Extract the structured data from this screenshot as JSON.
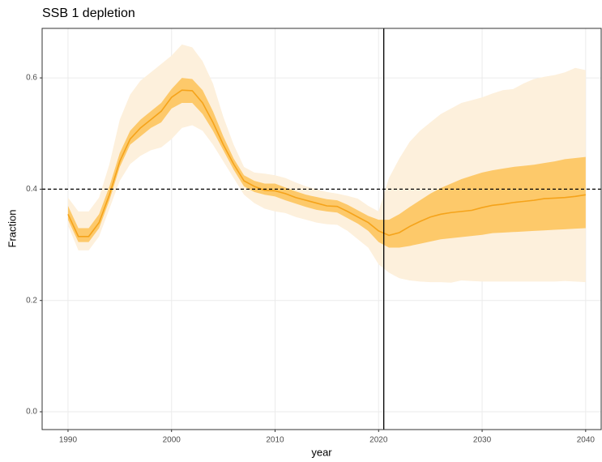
{
  "chart_data": {
    "type": "ribbon-line",
    "title": "SSB 1 depletion",
    "x_label": "year",
    "y_label": "Fraction",
    "x": [
      1990,
      1991,
      1992,
      1993,
      1994,
      1995,
      1996,
      1997,
      1998,
      1999,
      2000,
      2001,
      2002,
      2003,
      2004,
      2005,
      2006,
      2007,
      2008,
      2009,
      2010,
      2011,
      2012,
      2013,
      2014,
      2015,
      2016,
      2017,
      2018,
      2019,
      2020,
      2021,
      2022,
      2023,
      2024,
      2025,
      2026,
      2027,
      2028,
      2029,
      2030,
      2031,
      2032,
      2033,
      2034,
      2035,
      2036,
      2037,
      2038,
      2039,
      2040
    ],
    "values": [
      0.355,
      0.315,
      0.315,
      0.34,
      0.39,
      0.45,
      0.49,
      0.51,
      0.525,
      0.54,
      0.565,
      0.578,
      0.577,
      0.555,
      0.52,
      0.48,
      0.445,
      0.415,
      0.405,
      0.398,
      0.397,
      0.392,
      0.385,
      0.38,
      0.375,
      0.37,
      0.369,
      0.36,
      0.35,
      0.34,
      0.325,
      0.317,
      0.322,
      0.333,
      0.342,
      0.35,
      0.355,
      0.358,
      0.36,
      0.362,
      0.367,
      0.371,
      0.373,
      0.376,
      0.378,
      0.38,
      0.383,
      0.384,
      0.385,
      0.387,
      0.39
    ],
    "lower_50": [
      0.345,
      0.305,
      0.305,
      0.33,
      0.38,
      0.44,
      0.48,
      0.495,
      0.51,
      0.52,
      0.545,
      0.555,
      0.555,
      0.535,
      0.505,
      0.47,
      0.435,
      0.405,
      0.395,
      0.39,
      0.387,
      0.38,
      0.374,
      0.368,
      0.363,
      0.36,
      0.358,
      0.348,
      0.338,
      0.325,
      0.305,
      0.295,
      0.295,
      0.298,
      0.302,
      0.306,
      0.31,
      0.312,
      0.314,
      0.316,
      0.318,
      0.321,
      0.322,
      0.323,
      0.324,
      0.325,
      0.326,
      0.327,
      0.328,
      0.329,
      0.33
    ],
    "upper_50": [
      0.37,
      0.33,
      0.33,
      0.355,
      0.405,
      0.465,
      0.505,
      0.525,
      0.54,
      0.555,
      0.58,
      0.6,
      0.598,
      0.578,
      0.54,
      0.495,
      0.455,
      0.425,
      0.415,
      0.41,
      0.41,
      0.403,
      0.396,
      0.39,
      0.386,
      0.382,
      0.38,
      0.372,
      0.362,
      0.352,
      0.345,
      0.345,
      0.355,
      0.368,
      0.38,
      0.392,
      0.402,
      0.41,
      0.418,
      0.424,
      0.43,
      0.434,
      0.437,
      0.44,
      0.442,
      0.444,
      0.447,
      0.45,
      0.454,
      0.456,
      0.458
    ],
    "lower_90": [
      0.335,
      0.29,
      0.29,
      0.315,
      0.365,
      0.415,
      0.445,
      0.46,
      0.47,
      0.475,
      0.49,
      0.51,
      0.515,
      0.505,
      0.48,
      0.45,
      0.42,
      0.39,
      0.375,
      0.365,
      0.36,
      0.357,
      0.35,
      0.345,
      0.34,
      0.337,
      0.336,
      0.325,
      0.31,
      0.295,
      0.265,
      0.25,
      0.24,
      0.236,
      0.234,
      0.233,
      0.233,
      0.232,
      0.236,
      0.235,
      0.234,
      0.234,
      0.234,
      0.234,
      0.234,
      0.234,
      0.234,
      0.234,
      0.235,
      0.234,
      0.233
    ],
    "upper_90": [
      0.385,
      0.36,
      0.36,
      0.385,
      0.445,
      0.525,
      0.57,
      0.595,
      0.61,
      0.625,
      0.64,
      0.66,
      0.655,
      0.63,
      0.59,
      0.53,
      0.48,
      0.44,
      0.43,
      0.428,
      0.425,
      0.42,
      0.412,
      0.405,
      0.4,
      0.395,
      0.392,
      0.388,
      0.383,
      0.37,
      0.36,
      0.42,
      0.455,
      0.485,
      0.505,
      0.52,
      0.535,
      0.545,
      0.555,
      0.56,
      0.565,
      0.572,
      0.578,
      0.58,
      0.59,
      0.598,
      0.602,
      0.605,
      0.61,
      0.618,
      0.614
    ],
    "color": "#f5a31a",
    "band_50_color": "#fdc96a",
    "band_90_color": "#fdf0dc",
    "hline": 0.4,
    "vline": 2020.5,
    "xlim": [
      1987.5,
      2041.5
    ],
    "ylim": [
      -0.032,
      0.689
    ],
    "xticks": [
      1990,
      2000,
      2010,
      2020,
      2030,
      2040
    ],
    "yticks": [
      {
        "value": 0,
        "label": "0.0"
      },
      0.2,
      0.4,
      0.6
    ],
    "grid": true
  }
}
